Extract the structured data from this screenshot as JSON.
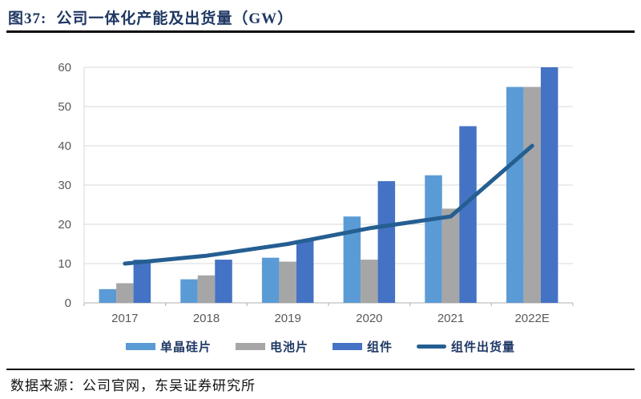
{
  "header": {
    "figure_label": "图37:",
    "title": "公司一体化产能及出货量（GW）"
  },
  "chart_data": {
    "type": "bar",
    "title": "公司一体化产能及出货量（GW）",
    "categories": [
      "2017",
      "2018",
      "2019",
      "2020",
      "2021",
      "2022E"
    ],
    "series": [
      {
        "name": "单晶硅片",
        "type": "bar",
        "color": "#5B9BD5",
        "values": [
          3.5,
          6,
          11.5,
          22,
          32.5,
          55
        ]
      },
      {
        "name": "电池片",
        "type": "bar",
        "color": "#A6A6A6",
        "values": [
          5,
          7,
          10.5,
          11,
          24,
          55
        ]
      },
      {
        "name": "组件",
        "type": "bar",
        "color": "#4472C4",
        "values": [
          11,
          11,
          16,
          31,
          45,
          60
        ]
      },
      {
        "name": "组件出货量",
        "type": "line",
        "color": "#255E91",
        "values": [
          10,
          12,
          15,
          19,
          22,
          40
        ]
      }
    ],
    "ylim": [
      0,
      60
    ],
    "yticks": [
      0,
      10,
      20,
      30,
      40,
      50,
      60
    ],
    "grid": true,
    "legend_position": "bottom",
    "unit": "GW"
  },
  "footer": {
    "source": "数据来源：公司官网，东吴证券研究所"
  },
  "colors": {
    "title_text": "#1F3864",
    "axis_text": "#595959",
    "gridline": "#D9D9D9",
    "axis_line": "#BFBFBF",
    "rule": "#0a0a0a"
  }
}
